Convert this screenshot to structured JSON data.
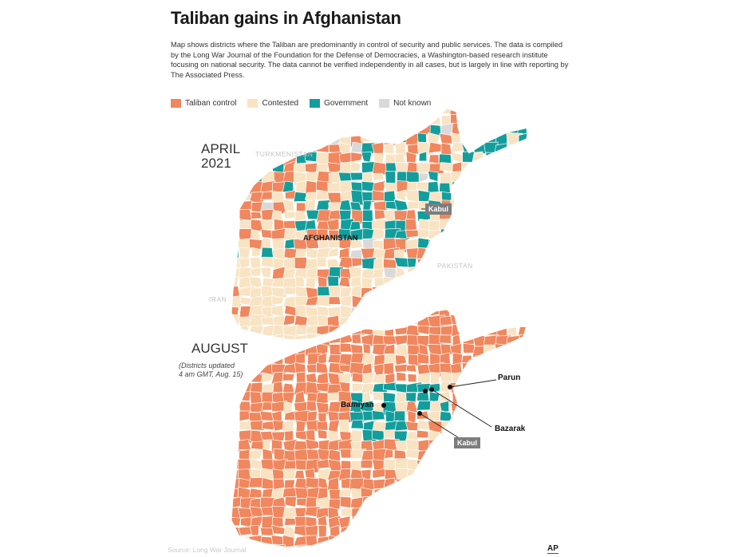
{
  "title": "Taliban gains in Afghanistan",
  "description": "Map shows districts where the Taliban are predominantly in control of security and public services. The data is compiled by the Long War Journal of the Foundation for the Defense of Democracies, a Washington-based research institute focusing on national security. The data cannot be verified independently in all cases, but is largely in line with reporting by The Associated Press.",
  "legend": [
    {
      "label": "Taliban control",
      "color": "#f0875e"
    },
    {
      "label": "Contested",
      "color": "#f8e3c3"
    },
    {
      "label": "Government",
      "color": "#139e9c"
    },
    {
      "label": "Not known",
      "color": "#d9d9d9"
    }
  ],
  "colors": {
    "border": "#ffffff",
    "accent_red": "#d11111"
  },
  "map_top": {
    "period_line1": "APRIL",
    "period_line2": "2021",
    "country_label": "AFGHANISTAN",
    "neighbors": [
      "TURKMENISTAN",
      "PAKISTAN",
      "IRAN"
    ],
    "capital_label": "Kabul"
  },
  "map_bottom": {
    "period": "AUGUST",
    "note_line1": "(Districts updated",
    "note_line2": "4 am GMT, Aug. 15)",
    "cities": [
      "Parun",
      "Bamiyan",
      "Bazarak"
    ],
    "capital_label": "Kabul"
  },
  "source": "Source: Long War Journal",
  "credit": "AP"
}
